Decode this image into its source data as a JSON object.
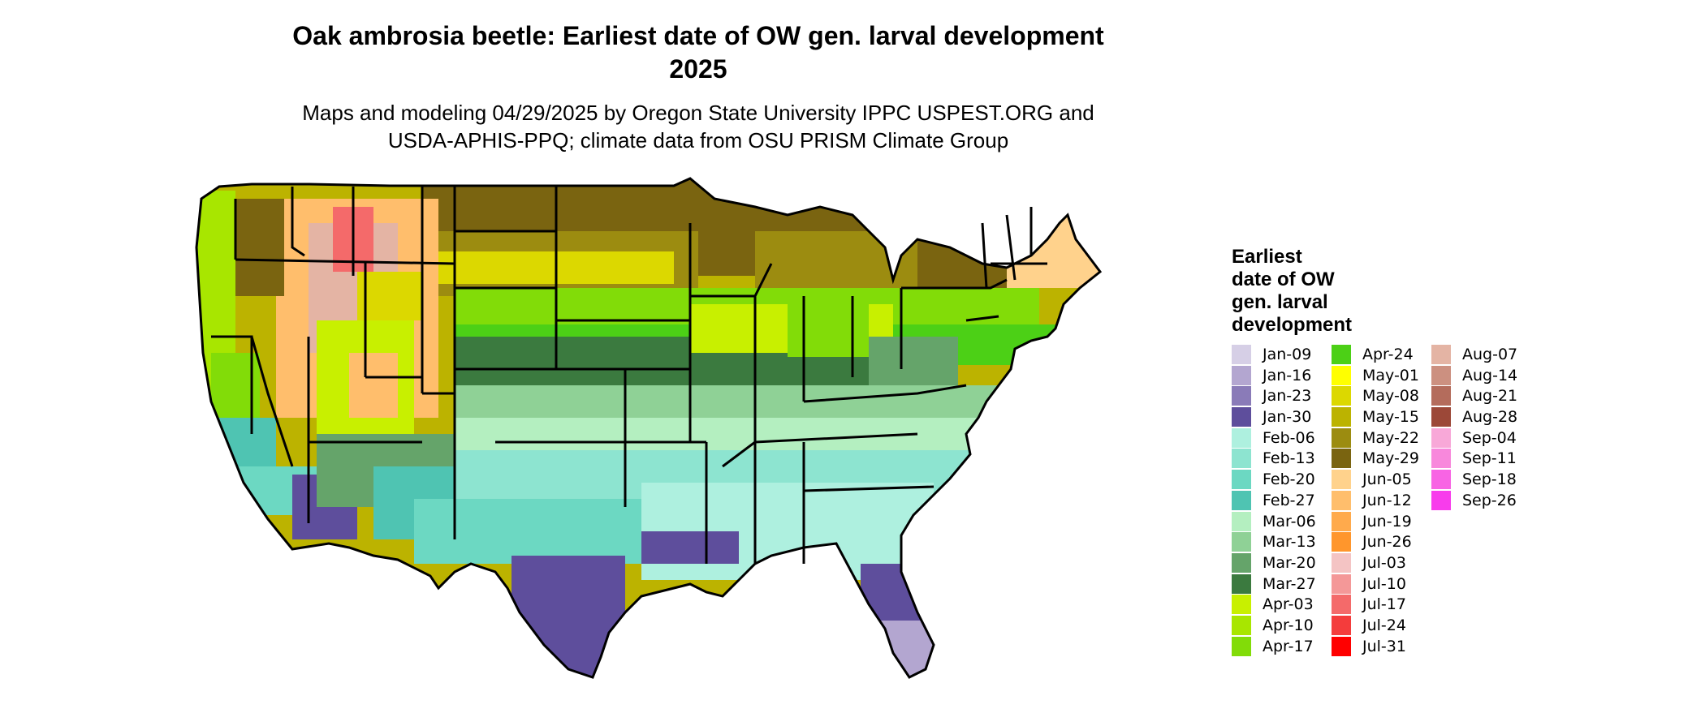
{
  "title": "Oak ambrosia beetle: Earliest date of OW gen. larval development",
  "subtitle_year": "2025",
  "credits_line1": "Maps and modeling 04/29/2025 by Oregon State University IPPC USPEST.ORG and",
  "credits_line2": "USDA-APHIS-PPQ; climate data from OSU PRISM Climate Group",
  "legend": {
    "title_lines": [
      "Earliest",
      "date of OW",
      "gen. larval",
      "development"
    ],
    "items": [
      {
        "label": "Jan-09",
        "color": "#d6cfe6"
      },
      {
        "label": "Jan-16",
        "color": "#b3a6d0"
      },
      {
        "label": "Jan-23",
        "color": "#8a7bb8"
      },
      {
        "label": "Jan-30",
        "color": "#5e4e9c"
      },
      {
        "label": "Feb-06",
        "color": "#aef0df"
      },
      {
        "label": "Feb-13",
        "color": "#8de4d0"
      },
      {
        "label": "Feb-20",
        "color": "#6cd8c2"
      },
      {
        "label": "Feb-27",
        "color": "#4fc4b2"
      },
      {
        "label": "Mar-06",
        "color": "#b4efc0"
      },
      {
        "label": "Mar-13",
        "color": "#8fd196"
      },
      {
        "label": "Mar-20",
        "color": "#65a46a"
      },
      {
        "label": "Mar-27",
        "color": "#3b7a3f"
      },
      {
        "label": "Apr-03",
        "color": "#c8f000"
      },
      {
        "label": "Apr-10",
        "color": "#a8e600"
      },
      {
        "label": "Apr-17",
        "color": "#82dc08"
      },
      {
        "label": "Apr-24",
        "color": "#4cd016"
      },
      {
        "label": "May-01",
        "color": "#ffff00"
      },
      {
        "label": "May-08",
        "color": "#dcd800"
      },
      {
        "label": "May-15",
        "color": "#bcb300"
      },
      {
        "label": "May-22",
        "color": "#9c8c10"
      },
      {
        "label": "May-29",
        "color": "#7a6410"
      },
      {
        "label": "Jun-05",
        "color": "#ffd28c"
      },
      {
        "label": "Jun-12",
        "color": "#ffbe6c"
      },
      {
        "label": "Jun-19",
        "color": "#ffaa4c"
      },
      {
        "label": "Jun-26",
        "color": "#ff962c"
      },
      {
        "label": "Jul-03",
        "color": "#f4c4c4"
      },
      {
        "label": "Jul-10",
        "color": "#f49898"
      },
      {
        "label": "Jul-17",
        "color": "#f46a6a"
      },
      {
        "label": "Jul-24",
        "color": "#f43c3c"
      },
      {
        "label": "Jul-31",
        "color": "#ff0000"
      },
      {
        "label": "Aug-07",
        "color": "#e4b4a4"
      },
      {
        "label": "Aug-14",
        "color": "#cc9080"
      },
      {
        "label": "Aug-21",
        "color": "#b46c5c"
      },
      {
        "label": "Aug-28",
        "color": "#9c4838"
      },
      {
        "label": "Sep-04",
        "color": "#f8a8d8"
      },
      {
        "label": "Sep-11",
        "color": "#f888dc"
      },
      {
        "label": "Sep-18",
        "color": "#f864e4"
      },
      {
        "label": "Sep-26",
        "color": "#f83cec"
      }
    ]
  }
}
